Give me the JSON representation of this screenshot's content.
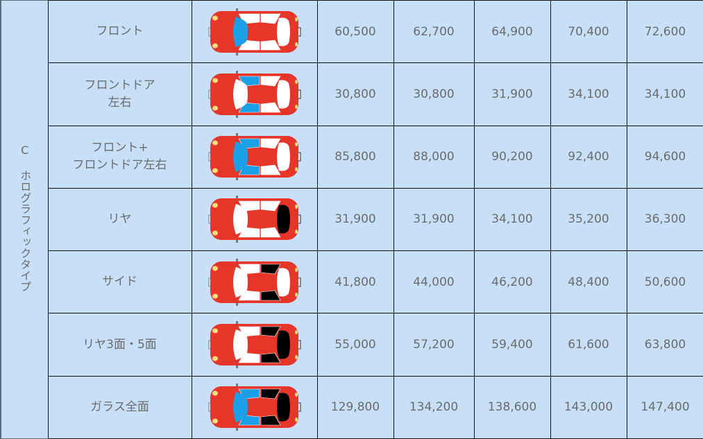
{
  "group_label": "C ホログラフィックタイプ",
  "colors": {
    "background": "#c7e0f8",
    "car_body": "#e8352a",
    "glass_clear": "#ffffff",
    "film_blue": "#1aa0e6",
    "film_black": "#000000",
    "headlight": "#f8e07a"
  },
  "rows": [
    {
      "name": "フロント",
      "car": {
        "windshield": "blue",
        "front_doors": "clear",
        "rear_doors": "clear",
        "rear": "clear"
      },
      "prices": [
        "60,500",
        "62,700",
        "64,900",
        "70,400",
        "72,600"
      ]
    },
    {
      "name": "フロントドア\n左右",
      "car": {
        "windshield": "clear",
        "front_doors": "blue",
        "rear_doors": "clear",
        "rear": "clear"
      },
      "prices": [
        "30,800",
        "30,800",
        "31,900",
        "34,100",
        "34,100"
      ]
    },
    {
      "name": "フロント+\nフロントドア左右",
      "car": {
        "windshield": "blue",
        "front_doors": "blue",
        "rear_doors": "clear",
        "rear": "clear"
      },
      "prices": [
        "85,800",
        "88,000",
        "90,200",
        "92,400",
        "94,600"
      ]
    },
    {
      "name": "リヤ",
      "car": {
        "windshield": "clear",
        "front_doors": "clear",
        "rear_doors": "clear",
        "rear": "black"
      },
      "prices": [
        "31,900",
        "31,900",
        "34,100",
        "35,200",
        "36,300"
      ]
    },
    {
      "name": "サイド",
      "car": {
        "windshield": "clear",
        "front_doors": "clear",
        "rear_doors": "black",
        "rear": "clear"
      },
      "prices": [
        "41,800",
        "44,000",
        "46,200",
        "48,400",
        "50,600"
      ]
    },
    {
      "name": "リヤ3面・5面",
      "car": {
        "windshield": "clear",
        "front_doors": "clear",
        "rear_doors": "black",
        "rear": "black"
      },
      "prices": [
        "55,000",
        "57,200",
        "59,400",
        "61,600",
        "63,800"
      ]
    },
    {
      "name": "ガラス全面",
      "car": {
        "windshield": "blue",
        "front_doors": "blue",
        "rear_doors": "black",
        "rear": "black"
      },
      "prices": [
        "129,800",
        "134,200",
        "138,600",
        "143,000",
        "147,400"
      ]
    }
  ]
}
